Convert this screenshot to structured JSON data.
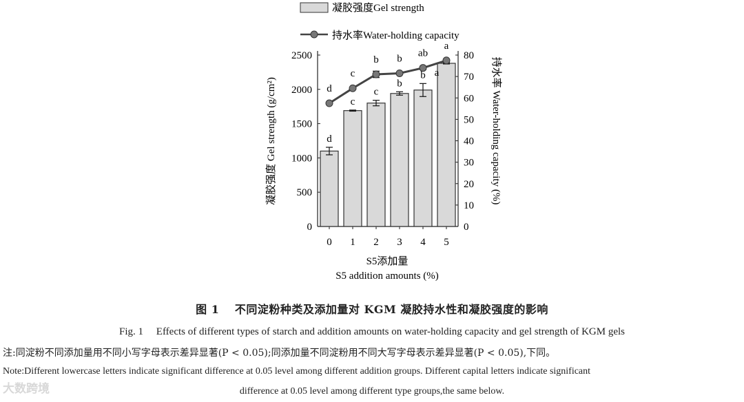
{
  "chart_data": {
    "type": "bar+line",
    "categories": [
      "0",
      "1",
      "2",
      "3",
      "4",
      "5"
    ],
    "xlabel_cn": "S5添加量",
    "xlabel_en": "S5 addition amounts (%)",
    "ylabel_left": "凝胶强度 Gel strength (g/cm²)",
    "ylabel_right": "持水率 Water-holding capacity (%)",
    "ylim_left": [
      0,
      2500
    ],
    "ylim_right": [
      0,
      80
    ],
    "yticks_left": [
      0,
      500,
      1000,
      1500,
      2000,
      2500
    ],
    "yticks_right": [
      0,
      10,
      20,
      30,
      40,
      50,
      60,
      70,
      80
    ],
    "legend_position": "top-center",
    "series": [
      {
        "name": "凝胶强度Gel strength",
        "kind": "bar",
        "axis": "left",
        "values": [
          1100,
          1690,
          1800,
          1940,
          1990,
          2380
        ],
        "errors": [
          55,
          8,
          40,
          25,
          95,
          10
        ],
        "letters": [
          "d",
          "c",
          "c",
          "b",
          "b",
          "a"
        ]
      },
      {
        "name": "持水率Water-holding capacity",
        "kind": "line",
        "axis": "right",
        "values": [
          57.5,
          64.5,
          71,
          71.5,
          74,
          77.5
        ],
        "errors": [
          0.4,
          0.3,
          1.5,
          0.3,
          0.8,
          0.3
        ],
        "letters": [
          "d",
          "c",
          "b",
          "b",
          "ab",
          "a"
        ]
      }
    ]
  },
  "caption": {
    "title_cn": "图 1　 不同淀粉种类及添加量对 KGM 凝胶持水性和凝胶强度的影响",
    "title_en": "Fig. 1　 Effects of different types of starch and addition amounts on water-holding capacity and gel strength of KGM gels"
  },
  "note": {
    "cn": "注:同淀粉不同添加量用不同小写字母表示差异显著(P < 0.05);同添加量不同淀粉用不同大写字母表示差异显著(P < 0.05),下同。",
    "en_line1": "Note:Different lowercase letters indicate significant difference at 0.05 level among different addition groups. Different capital letters indicate significant",
    "en_line2": "difference at 0.05 level among different type groups,the same below."
  },
  "watermark": "大数跨境",
  "colors": {
    "bar_fill": "#d9d9d9",
    "bar_stroke": "#333333",
    "line": "#444444",
    "marker": "#777777",
    "axis": "#222222"
  }
}
